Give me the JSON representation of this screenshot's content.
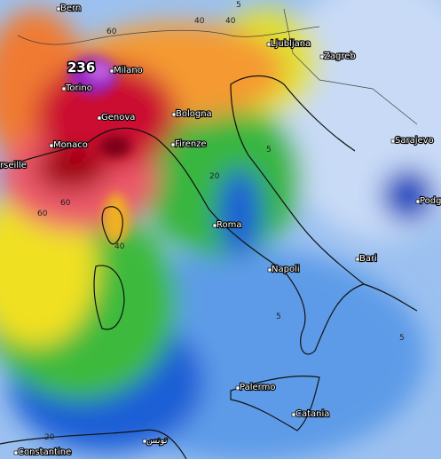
{
  "max_label": "236",
  "cities": [
    "Bern",
    "Torino",
    "Milano",
    "Genova",
    "Monaco",
    "rseille",
    "Bologna",
    "Firenze",
    "Roma",
    "Napoli",
    "Ljubljana",
    "Zagreb",
    "Sarajevo",
    "Podg",
    "Bari",
    "Palermo",
    "Catania",
    "Constantine",
    "تونس"
  ],
  "contour_labels": [
    60,
    40,
    5,
    5,
    20,
    60,
    60,
    40,
    5,
    20,
    5,
    40
  ]
}
